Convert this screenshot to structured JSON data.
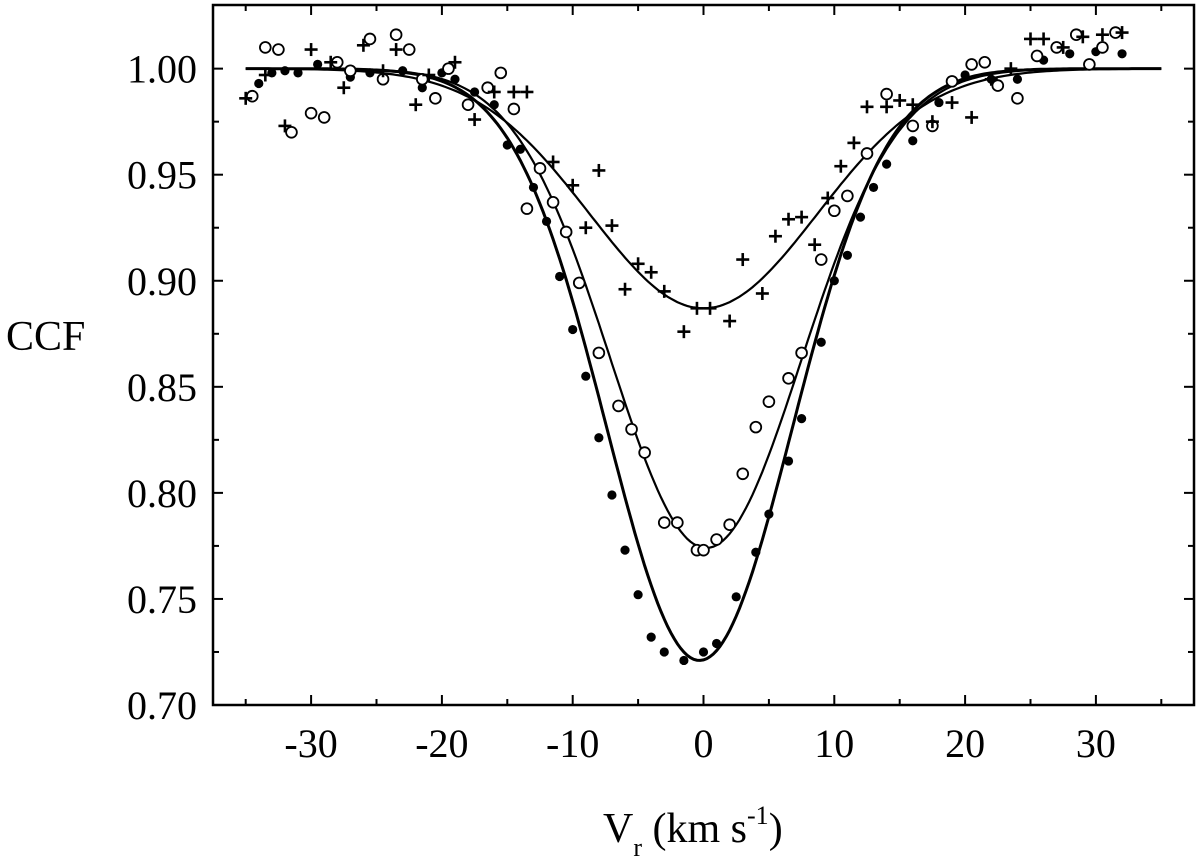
{
  "chart_data": {
    "type": "scatter",
    "title": "",
    "ylabel": "CCF",
    "xlabel": {
      "main": "V",
      "subscript": "r",
      "unit_open": " (km s",
      "superscript": "-1",
      "unit_close": ")"
    },
    "xlim": [
      -37.5,
      37.5
    ],
    "ylim": [
      0.7,
      1.03
    ],
    "x_ticks": [
      -30,
      -20,
      -10,
      0,
      10,
      20,
      30
    ],
    "x_tick_labels": [
      "-30",
      "-20",
      "-10",
      "0",
      "10",
      "20",
      "30"
    ],
    "y_ticks": [
      0.7,
      0.75,
      0.8,
      0.85,
      0.9,
      0.95,
      1.0
    ],
    "y_tick_labels": [
      "0.70",
      "0.75",
      "0.80",
      "0.85",
      "0.90",
      "0.95",
      "1.00"
    ],
    "grid": false,
    "fits": [
      {
        "name": "fit-filled",
        "depth": 0.279,
        "center": -0.3,
        "sigma": 7.1,
        "baseline": 1.0,
        "x_range": [
          -35,
          35
        ]
      },
      {
        "name": "fit-open",
        "depth": 0.226,
        "center": 0.2,
        "sigma": 7.3,
        "baseline": 1.0,
        "x_range": [
          -35,
          35
        ]
      },
      {
        "name": "fit-plus",
        "depth": 0.113,
        "center": 0.0,
        "sigma": 8.7,
        "baseline": 1.0,
        "x_range": [
          -35,
          35
        ]
      }
    ],
    "series": [
      {
        "name": "filled circles",
        "marker": "filled-circle",
        "x": [
          -34.0,
          -33.0,
          -32.0,
          -31.0,
          -29.5,
          -27.0,
          -25.5,
          -23.0,
          -21.5,
          -20.0,
          -19.0,
          -17.5,
          -16.0,
          -15.0,
          -14.0,
          -13.0,
          -12.0,
          -11.0,
          -10.0,
          -9.0,
          -8.0,
          -7.0,
          -6.0,
          -5.0,
          -4.0,
          -3.0,
          -1.5,
          0.0,
          1.0,
          2.5,
          4.0,
          5.0,
          6.5,
          7.5,
          9.0,
          10.0,
          11.0,
          12.0,
          13.0,
          14.0,
          16.0,
          18.0,
          20.0,
          22.0,
          24.0,
          26.0,
          28.0,
          30.0,
          32.0
        ],
        "values": [
          0.993,
          0.998,
          0.999,
          0.998,
          1.002,
          0.996,
          0.998,
          0.999,
          0.991,
          0.998,
          0.995,
          0.989,
          0.983,
          0.964,
          0.962,
          0.944,
          0.928,
          0.902,
          0.877,
          0.855,
          0.826,
          0.799,
          0.773,
          0.752,
          0.732,
          0.725,
          0.721,
          0.725,
          0.729,
          0.751,
          0.772,
          0.79,
          0.815,
          0.835,
          0.871,
          0.9,
          0.912,
          0.93,
          0.944,
          0.955,
          0.966,
          0.984,
          0.997,
          0.995,
          0.995,
          1.004,
          1.007,
          1.008,
          1.007
        ]
      },
      {
        "name": "open circles",
        "marker": "open-circle",
        "x": [
          -34.5,
          -33.5,
          -32.5,
          -31.5,
          -30.0,
          -29.0,
          -28.0,
          -27.0,
          -25.5,
          -24.5,
          -23.5,
          -22.5,
          -21.5,
          -20.5,
          -19.5,
          -18.0,
          -16.5,
          -15.5,
          -14.5,
          -13.5,
          -12.5,
          -11.5,
          -10.5,
          -9.5,
          -8.0,
          -6.5,
          -5.5,
          -4.5,
          -3.0,
          -2.0,
          -0.5,
          0.0,
          1.0,
          2.0,
          3.0,
          4.0,
          5.0,
          6.5,
          7.5,
          9.0,
          10.0,
          11.0,
          12.5,
          14.0,
          16.0,
          17.5,
          19.0,
          20.5,
          21.5,
          22.5,
          24.0,
          25.5,
          27.0,
          28.5,
          29.5,
          30.5,
          31.5
        ],
        "values": [
          0.987,
          1.01,
          1.009,
          0.97,
          0.979,
          0.977,
          1.003,
          0.999,
          1.014,
          0.995,
          1.016,
          1.009,
          0.995,
          0.986,
          1.0,
          0.983,
          0.991,
          0.998,
          0.981,
          0.934,
          0.953,
          0.937,
          0.923,
          0.899,
          0.866,
          0.841,
          0.83,
          0.819,
          0.786,
          0.786,
          0.773,
          0.773,
          0.778,
          0.785,
          0.809,
          0.831,
          0.843,
          0.854,
          0.866,
          0.91,
          0.933,
          0.94,
          0.96,
          0.988,
          0.973,
          0.973,
          0.994,
          1.002,
          1.003,
          0.992,
          0.986,
          1.006,
          1.01,
          1.016,
          1.002,
          1.01,
          1.017
        ]
      },
      {
        "name": "plus signs",
        "marker": "plus",
        "x": [
          -35.0,
          -33.5,
          -32.0,
          -30.0,
          -28.5,
          -27.5,
          -26.0,
          -24.5,
          -23.5,
          -22.0,
          -21.0,
          -19.0,
          -17.5,
          -16.0,
          -14.5,
          -13.5,
          -11.5,
          -10.0,
          -9.0,
          -8.0,
          -7.0,
          -6.0,
          -5.0,
          -4.0,
          -3.0,
          -1.5,
          -0.5,
          0.5,
          2.0,
          3.0,
          4.5,
          5.5,
          6.5,
          7.5,
          8.5,
          9.5,
          10.5,
          11.5,
          12.5,
          14.0,
          15.0,
          16.0,
          17.5,
          19.0,
          20.5,
          22.0,
          23.5,
          25.0,
          26.0,
          27.5,
          29.0,
          30.5,
          32.0
        ],
        "values": [
          0.986,
          0.997,
          0.973,
          1.009,
          1.003,
          0.991,
          1.011,
          0.999,
          1.009,
          0.983,
          0.997,
          1.003,
          0.976,
          0.989,
          0.989,
          0.989,
          0.956,
          0.945,
          0.925,
          0.952,
          0.926,
          0.896,
          0.908,
          0.904,
          0.895,
          0.876,
          0.887,
          0.887,
          0.881,
          0.91,
          0.894,
          0.921,
          0.929,
          0.93,
          0.917,
          0.939,
          0.954,
          0.965,
          0.982,
          0.982,
          0.985,
          0.983,
          0.975,
          0.984,
          0.977,
          0.995,
          1.0,
          1.014,
          1.014,
          1.01,
          1.015,
          1.016,
          1.017
        ]
      }
    ]
  }
}
